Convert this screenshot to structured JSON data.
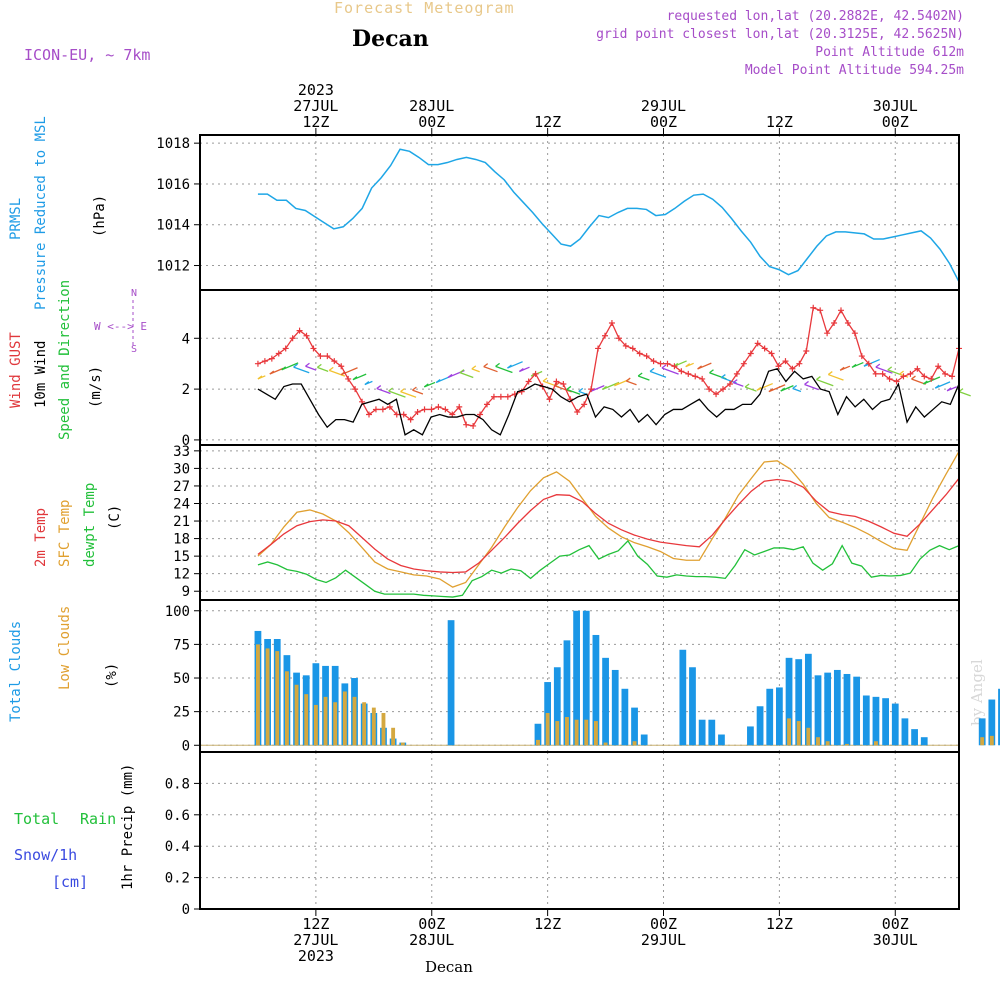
{
  "header": {
    "supertitle": "Forecast Meteogram",
    "title": "Decan",
    "model": "ICON-EU, ~ 7km",
    "requested": "requested lon,lat (20.2882E, 42.5402N)",
    "grid": "grid point closest lon,lat (20.3125E, 42.5625N)",
    "point_alt": "Point Altitude 612m",
    "model_alt": "Model Point Altitude 594.25m"
  },
  "footer": {
    "location": "Decan",
    "credit": "by Angel"
  },
  "time_axis": {
    "top": [
      {
        "t": 12,
        "lines": [
          "2023",
          "27JUL",
          "12Z"
        ]
      },
      {
        "t": 24,
        "lines": [
          "28JUL",
          "00Z"
        ]
      },
      {
        "t": 36,
        "lines": [
          "12Z"
        ]
      },
      {
        "t": 48,
        "lines": [
          "29JUL",
          "00Z"
        ]
      },
      {
        "t": 60,
        "lines": [
          "12Z"
        ]
      },
      {
        "t": 72,
        "lines": [
          "30JUL",
          "00Z"
        ]
      }
    ],
    "bottom": [
      {
        "t": 12,
        "lines": [
          "12Z",
          "27JUL",
          "2023"
        ]
      },
      {
        "t": 24,
        "lines": [
          "00Z",
          "28JUL"
        ]
      },
      {
        "t": 36,
        "lines": [
          "12Z"
        ]
      },
      {
        "t": 48,
        "lines": [
          "00Z",
          "29JUL"
        ]
      },
      {
        "t": 60,
        "lines": [
          "12Z"
        ]
      },
      {
        "t": 72,
        "lines": [
          "00Z",
          "30JUL"
        ]
      }
    ]
  },
  "labels": {
    "p1": {
      "a": "PRMSL",
      "b": "Pressure Reduced to MSL",
      "c": "(hPa)"
    },
    "p2": {
      "a": "Wind GUST",
      "b": "10m Wind",
      "c": "Speed and Direction",
      "d": "(m/s)",
      "compass": "W <--> E",
      "compass_n": "N",
      "compass_s": "S"
    },
    "p3": {
      "a": "2m Temp",
      "b": "SFC Temp",
      "c": "dewpt Temp",
      "d": "(C)"
    },
    "p4": {
      "a": "Total Clouds",
      "b": "Low Clouds",
      "c": "(%)"
    },
    "p5": {
      "total": "Total",
      "rain": "Rain",
      "snow": "Snow/1h",
      "cm": "[cm]",
      "axis": "1hr Precip (mm)"
    }
  },
  "colors": {
    "pressure": "#1ea6e6",
    "gust": "#e8383c",
    "wind": "#000000",
    "temp2m": "#e8383c",
    "sfc": "#e0a030",
    "dewpt": "#22c03a",
    "total_cloud": "#1a96e6",
    "low_cloud": "#d4a840",
    "grid": "#9a9a9a"
  },
  "chart_data": [
    {
      "type": "line",
      "title": "PRMSL Pressure Reduced to MSL",
      "ylabel": "(hPa)",
      "ylim": [
        1010.8,
        1018.4
      ],
      "yticks": [
        1012,
        1014,
        1016,
        1018
      ],
      "x_hours_start": 6,
      "series": [
        {
          "name": "PRMSL",
          "values": [
            1015.5,
            1015.5,
            1015.2,
            1015.2,
            1014.8,
            1014.7,
            1014.4,
            1014.1,
            1013.8,
            1013.9,
            1014.3,
            1014.8,
            1015.8,
            1016.3,
            1016.9,
            1017.7,
            1017.6,
            1017.3,
            1016.95,
            1016.95,
            1017.05,
            1017.2,
            1017.3,
            1017.2,
            1017.05,
            1016.6,
            1016.2,
            1015.6,
            1015.1,
            1014.6,
            1014.05,
            1013.55,
            1013.05,
            1012.95,
            1013.3,
            1013.9,
            1014.45,
            1014.35,
            1014.6,
            1014.8,
            1014.8,
            1014.75,
            1014.45,
            1014.5,
            1014.8,
            1015.15,
            1015.45,
            1015.5,
            1015.25,
            1014.85,
            1014.3,
            1013.7,
            1013.15,
            1012.45,
            1011.95,
            1011.8,
            1011.55,
            1011.75,
            1012.35,
            1012.95,
            1013.45,
            1013.65,
            1013.65,
            1013.6,
            1013.55,
            1013.3,
            1013.3,
            1013.4,
            1013.5,
            1013.6,
            1013.7,
            1013.35,
            1012.8,
            1012.1,
            1011.2
          ]
        }
      ]
    },
    {
      "type": "line",
      "title": "Wind GUST / 10m Wind Speed and Direction",
      "ylabel": "(m/s)",
      "ylim": [
        -0.2,
        5.9
      ],
      "yticks": [
        0,
        2,
        4
      ],
      "x_hours_start": 6,
      "series": [
        {
          "name": "Wind GUST",
          "values": [
            3.0,
            3.1,
            3.2,
            3.4,
            3.6,
            4.0,
            4.3,
            4.1,
            3.6,
            3.3,
            3.3,
            3.1,
            2.9,
            2.4,
            2.0,
            1.5,
            1.0,
            1.2,
            1.2,
            1.3,
            1.0,
            1.0,
            0.8,
            1.1,
            1.2,
            1.2,
            1.3,
            1.2,
            1.0,
            1.3,
            0.6,
            0.55,
            1.0,
            1.4,
            1.7,
            1.7,
            1.7,
            1.8,
            1.9,
            2.3,
            2.6,
            2.1,
            1.6,
            2.3,
            2.2,
            1.6,
            1.1,
            1.4,
            2.0,
            3.6,
            4.1,
            4.6,
            4.0,
            3.7,
            3.6,
            3.4,
            3.3,
            3.1,
            3.0,
            3.0,
            2.9,
            2.7,
            2.6,
            2.5,
            2.4,
            2.0,
            1.8,
            2.0,
            2.2,
            2.6,
            3.0,
            3.4,
            3.8,
            3.6,
            3.4,
            2.9,
            3.1,
            2.8,
            3.0,
            3.5,
            5.2,
            5.1,
            4.2,
            4.6,
            5.1,
            4.6,
            4.2,
            3.3,
            3.0,
            2.6,
            2.6,
            2.4,
            2.3,
            2.5,
            2.6,
            2.8,
            2.5,
            2.4,
            2.9,
            2.6,
            2.5,
            3.6
          ]
        },
        {
          "name": "10m Wind",
          "values": [
            2.0,
            1.8,
            1.6,
            2.1,
            2.2,
            2.2,
            1.6,
            1.0,
            0.5,
            0.8,
            0.8,
            0.7,
            1.4,
            1.5,
            1.6,
            1.4,
            1.6,
            0.2,
            0.4,
            0.2,
            0.9,
            1.0,
            0.9,
            0.9,
            1.0,
            1.0,
            0.8,
            0.4,
            0.2,
            1.0,
            1.9,
            2.0,
            2.2,
            2.1,
            2.0,
            1.7,
            1.5,
            1.7,
            1.8,
            0.9,
            1.3,
            1.2,
            0.9,
            1.2,
            0.7,
            1.0,
            0.6,
            1.0,
            1.2,
            1.2,
            1.4,
            1.6,
            1.2,
            0.9,
            1.2,
            1.2,
            1.4,
            1.4,
            1.8,
            2.7,
            2.8,
            2.3,
            2.7,
            2.4,
            2.5,
            2.0,
            1.9,
            1.0,
            1.7,
            1.3,
            1.6,
            1.2,
            1.5,
            1.6,
            2.2,
            0.7,
            1.3,
            0.9,
            1.2,
            1.5,
            1.4,
            2.2
          ]
        }
      ]
    },
    {
      "type": "line",
      "title": "2m Temp / SFC Temp / dewpt Temp",
      "ylabel": "(C)",
      "ylim": [
        7.5,
        34.0
      ],
      "yticks": [
        9,
        12,
        15,
        18,
        21,
        24,
        27,
        30,
        33
      ],
      "x_hours_start": 6,
      "series": [
        {
          "name": "2m Temp",
          "values": [
            15.3,
            17.0,
            18.8,
            20.2,
            20.9,
            21.2,
            21.0,
            20.2,
            18.2,
            16.2,
            14.5,
            13.4,
            12.8,
            12.5,
            12.3,
            12.2,
            12.3,
            13.8,
            16.0,
            18.2,
            20.6,
            22.8,
            24.7,
            25.5,
            25.4,
            24.3,
            22.3,
            20.6,
            19.5,
            18.6,
            17.9,
            17.4,
            17.1,
            16.8,
            16.6,
            18.6,
            21.3,
            23.8,
            26.1,
            27.8,
            28.1,
            27.8,
            26.8,
            24.4,
            22.6,
            22.1,
            21.8,
            21.0,
            20.0,
            18.9,
            18.4,
            20.5,
            23.0,
            25.5,
            28.3
          ]
        },
        {
          "name": "SFC Temp",
          "values": [
            15.0,
            17.0,
            20.0,
            22.5,
            22.9,
            22.2,
            21.0,
            19.0,
            16.5,
            14.0,
            12.8,
            12.3,
            11.8,
            11.6,
            11.1,
            9.7,
            10.5,
            13.5,
            16.5,
            20.0,
            23.3,
            26.2,
            28.4,
            29.4,
            27.8,
            24.8,
            21.8,
            19.8,
            18.3,
            17.3,
            16.6,
            15.8,
            14.6,
            14.3,
            14.3,
            18.0,
            21.5,
            25.4,
            28.3,
            31.1,
            31.3,
            29.9,
            27.3,
            24.0,
            21.6,
            20.8,
            19.9,
            18.8,
            17.5,
            16.3,
            16.0,
            20.5,
            25.0,
            29.0,
            32.9
          ]
        },
        {
          "name": "dewpt Temp",
          "values": [
            13.5,
            14.0,
            13.5,
            12.7,
            12.4,
            11.9,
            11.0,
            10.5,
            11.3,
            12.6,
            11.4,
            10.2,
            9.0,
            8.5,
            8.5,
            8.5,
            8.5,
            8.3,
            8.2,
            8.1,
            8.0,
            8.3,
            10.8,
            11.5,
            12.6,
            12.1,
            12.8,
            12.5,
            11.2,
            12.6,
            13.8,
            15.0,
            15.2,
            16.1,
            16.8,
            14.5,
            15.3,
            15.9,
            17.6,
            15.0,
            13.6,
            11.6,
            11.4,
            11.8,
            11.6,
            11.5,
            11.5,
            11.4,
            11.2,
            13.4,
            16.1,
            15.2,
            15.8,
            16.4,
            16.4,
            16.1,
            16.6,
            13.8,
            12.6,
            13.7,
            16.8,
            13.8,
            13.3,
            11.4,
            11.7,
            11.6,
            11.7,
            12.1,
            14.5,
            16.0,
            16.8,
            16.1,
            16.8
          ]
        }
      ]
    },
    {
      "type": "bar",
      "title": "Total Clouds / Low Clouds",
      "ylabel": "(%)",
      "ylim": [
        -5,
        108
      ],
      "yticks": [
        0,
        25,
        50,
        75,
        100
      ],
      "x_hours_start": 6,
      "series": [
        {
          "name": "Total Clouds",
          "values": [
            85,
            79,
            79,
            67,
            54,
            52,
            61,
            59,
            59,
            46,
            50,
            31,
            24,
            13,
            5,
            2,
            0,
            0,
            0,
            0,
            93,
            0,
            0,
            0,
            0,
            0,
            0,
            0,
            0,
            16,
            47,
            58,
            78,
            100,
            100,
            82,
            65,
            56,
            42,
            28,
            8,
            0,
            0,
            0,
            71,
            58,
            19,
            19,
            8,
            0,
            0,
            14,
            29,
            42,
            43,
            65,
            64,
            68,
            52,
            54,
            56,
            53,
            51,
            37,
            36,
            35,
            31,
            20,
            12,
            6,
            0,
            0,
            0,
            0,
            0,
            20,
            34,
            42
          ]
        },
        {
          "name": "Low Clouds",
          "values": [
            75,
            72,
            70,
            55,
            45,
            38,
            30,
            36,
            32,
            40,
            36,
            32,
            28,
            24,
            13,
            2,
            0,
            0,
            0,
            0,
            0,
            0,
            0,
            0,
            0,
            0,
            0,
            0,
            0,
            4,
            24,
            18,
            21,
            19,
            19,
            18,
            2,
            0,
            0,
            3,
            0,
            0,
            0,
            0,
            0,
            0,
            0,
            0,
            0,
            0,
            0,
            0,
            0,
            0,
            0,
            20,
            18,
            13,
            6,
            3,
            0,
            1,
            0,
            0,
            3,
            0,
            0,
            0,
            0,
            0,
            0,
            0,
            0,
            0,
            0,
            6,
            7
          ]
        }
      ]
    },
    {
      "type": "bar",
      "title": "1hr Precip",
      "ylabel": "1hr Precip (mm)",
      "ylim": [
        0,
        1.0
      ],
      "yticks": [
        0,
        0.2,
        0.4,
        0.6,
        0.8
      ],
      "series": [
        {
          "name": "Total Rain",
          "values": []
        },
        {
          "name": "Snow/1h",
          "values": []
        }
      ]
    }
  ]
}
